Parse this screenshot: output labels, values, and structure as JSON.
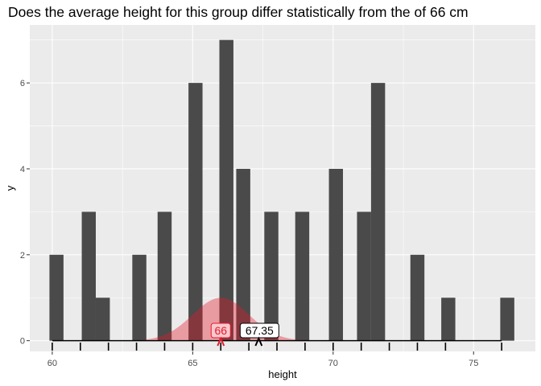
{
  "chart_data": {
    "type": "bar",
    "title": "Does the average height for this group differ statistically from the of 66 cm",
    "xlabel": "height",
    "ylabel": "y",
    "xlim": [
      59.2,
      77.2
    ],
    "ylim": [
      -0.25,
      7.35
    ],
    "x_ticks": [
      60,
      65,
      70,
      75
    ],
    "y_ticks": [
      0,
      2,
      4,
      6
    ],
    "grid": true,
    "bin_width": 0.5,
    "bins": [
      {
        "x": 60.15,
        "count": 2
      },
      {
        "x": 61.3,
        "count": 3
      },
      {
        "x": 61.8,
        "count": 1
      },
      {
        "x": 63.1,
        "count": 2
      },
      {
        "x": 64.0,
        "count": 3
      },
      {
        "x": 65.1,
        "count": 6
      },
      {
        "x": 66.2,
        "count": 7
      },
      {
        "x": 66.8,
        "count": 4
      },
      {
        "x": 67.8,
        "count": 3
      },
      {
        "x": 68.9,
        "count": 3
      },
      {
        "x": 70.1,
        "count": 4
      },
      {
        "x": 71.1,
        "count": 3
      },
      {
        "x": 71.6,
        "count": 6
      },
      {
        "x": 73.0,
        "count": 2
      },
      {
        "x": 74.1,
        "count": 1
      },
      {
        "x": 76.2,
        "count": 1
      }
    ],
    "null_distribution": {
      "mean": 66,
      "sd": 1.0,
      "peak": 1.0
    },
    "baseline": {
      "from": 60,
      "to": 76
    },
    "rug_ticks": [
      60,
      61,
      62,
      63,
      64,
      65,
      66,
      67,
      68,
      69,
      70,
      71,
      72,
      73,
      74,
      76
    ],
    "annotations": [
      {
        "label": "66",
        "x": 66,
        "color": "#e8192c"
      },
      {
        "label": "67.35",
        "x": 67.35,
        "color": "#000000"
      }
    ],
    "colors": {
      "panel": "#ebebeb",
      "grid_major": "#ffffff",
      "bar": "#4a4a4a",
      "null_fill": "#e8192c"
    }
  }
}
